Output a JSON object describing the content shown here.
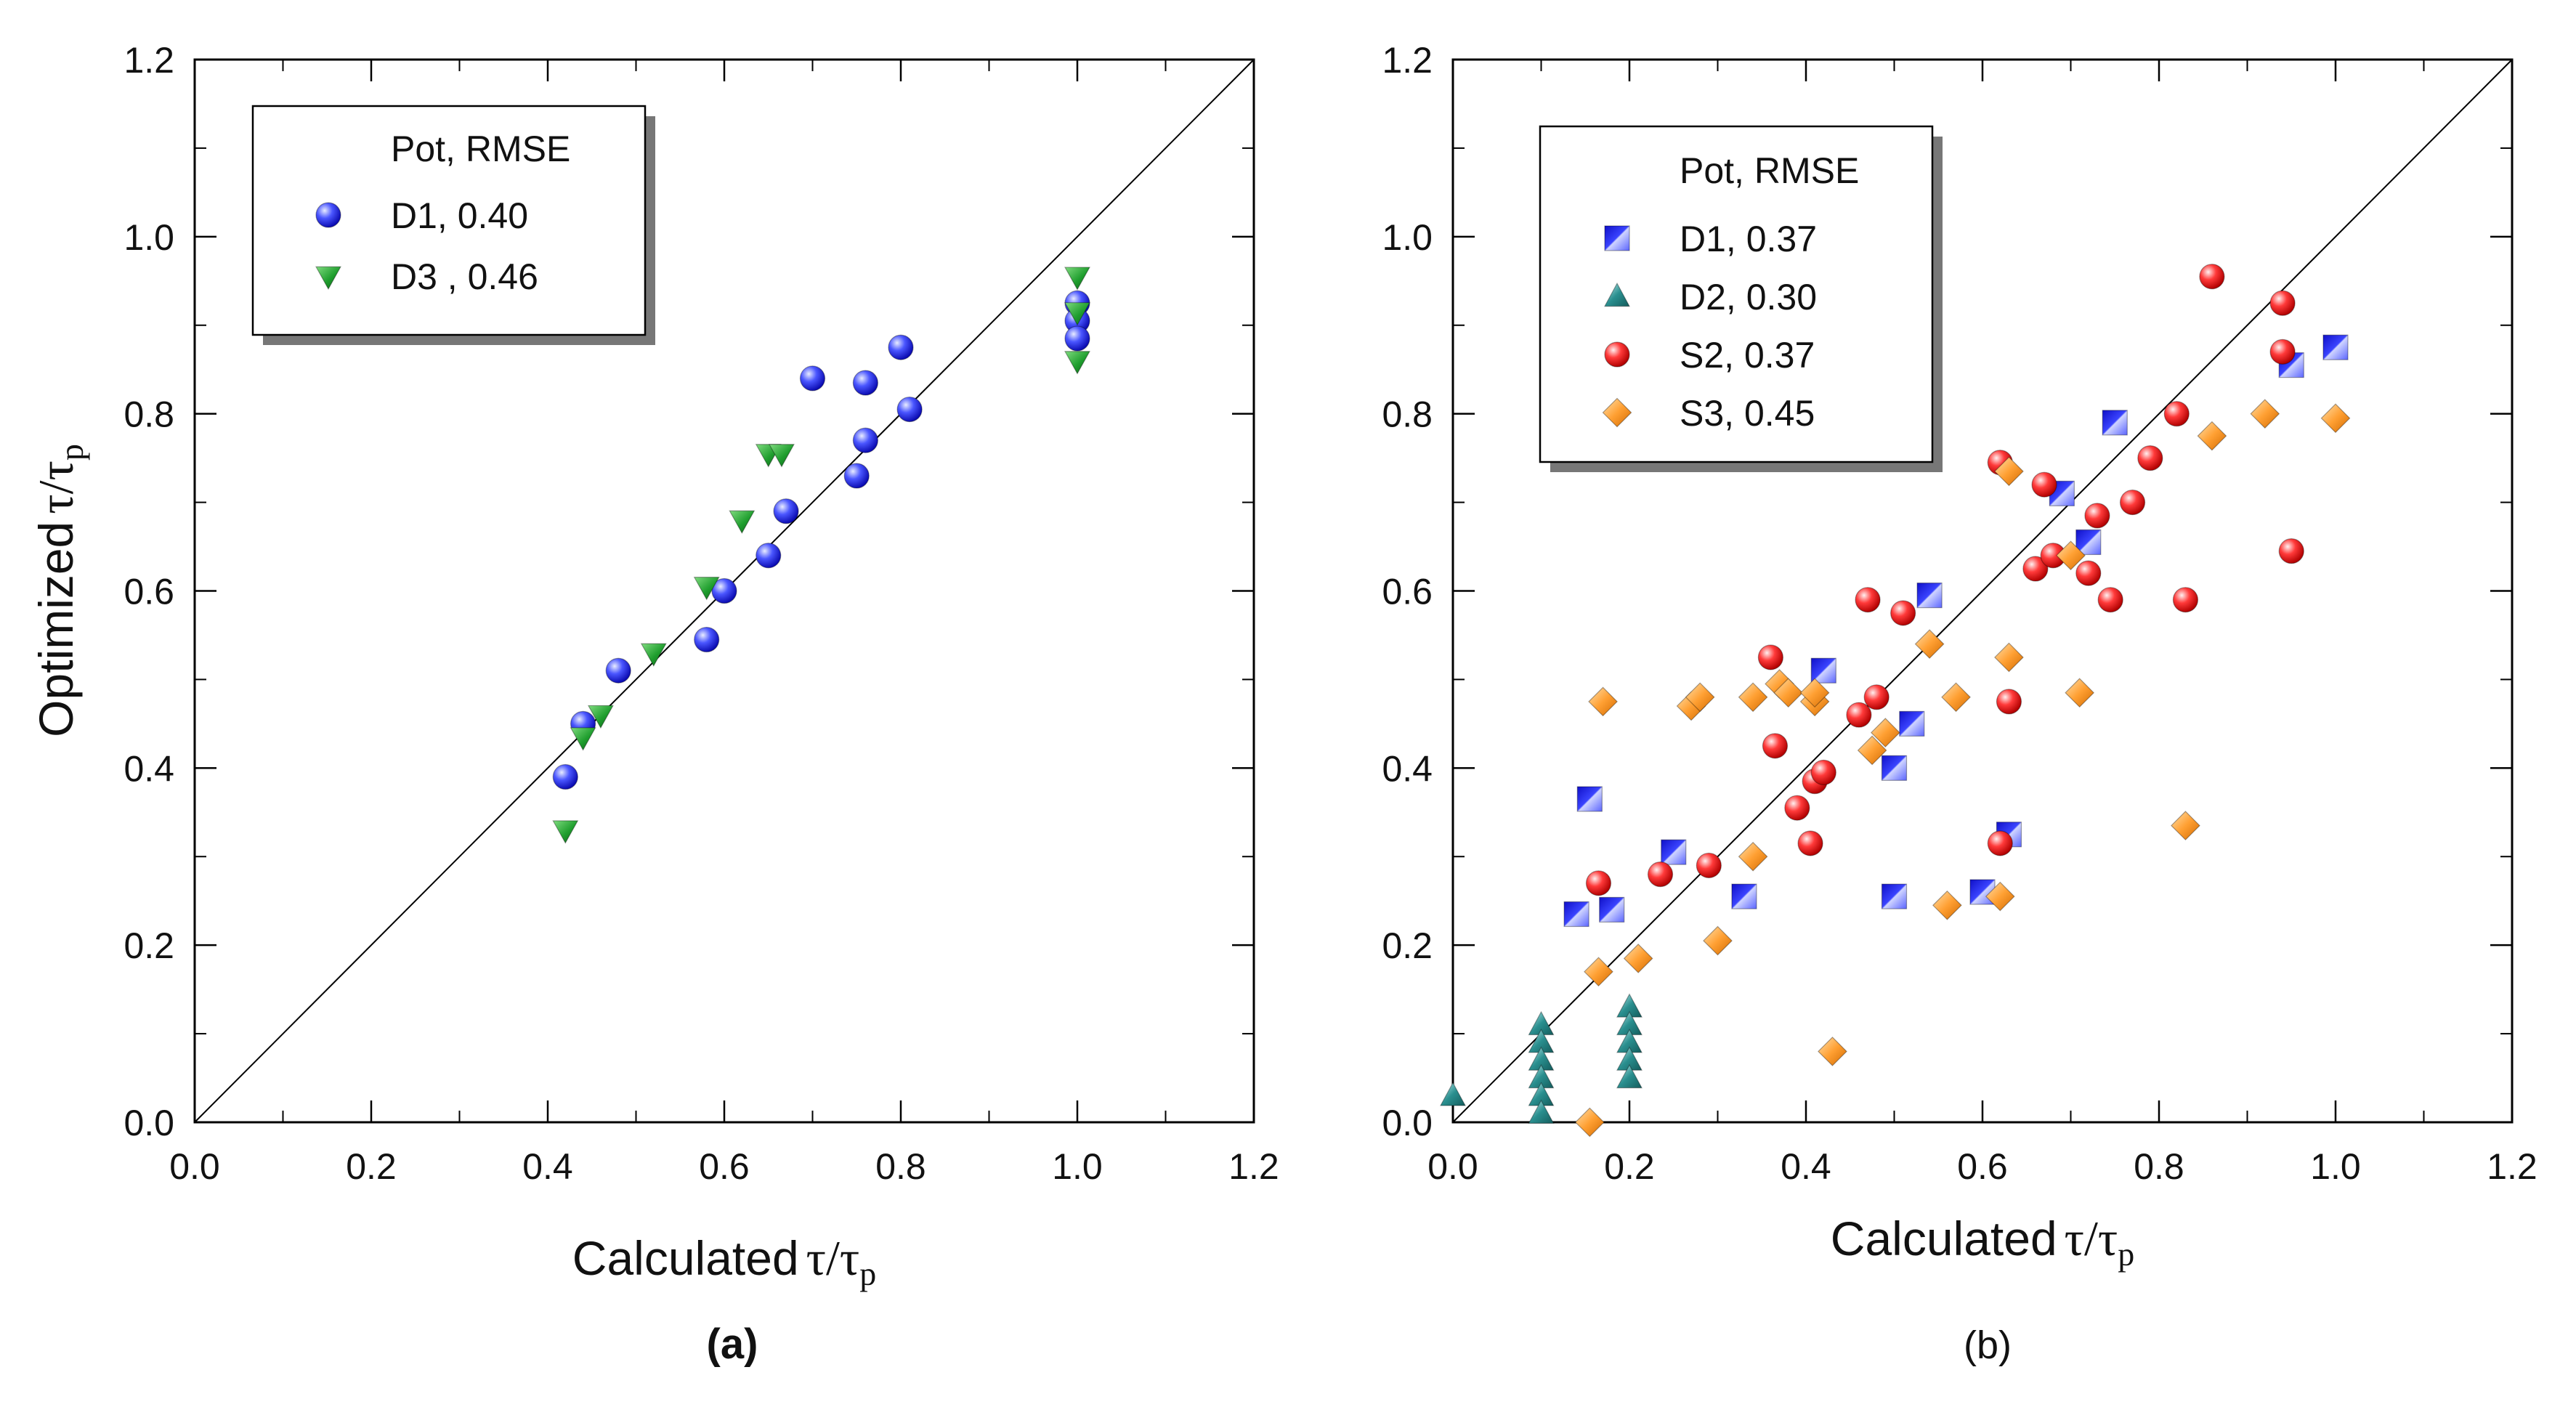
{
  "figure": {
    "panel_a_caption": "(a)",
    "panel_b_caption": "(b)"
  },
  "chart_data": [
    {
      "type": "scatter",
      "panel": "a",
      "caption": "(a)",
      "xlabel": "Calculated τ/τp",
      "xlabel_main": "Calculated",
      "xlabel_tau": "τ/τ",
      "xlabel_sub": "p",
      "ylabel": "Optimized τ/τp",
      "ylabel_main": "Optimized",
      "ylabel_tau": "τ/τ",
      "ylabel_sub": "p",
      "xlim": [
        0,
        1.2
      ],
      "ylim": [
        0,
        1.2
      ],
      "xticks": [
        "0.0",
        "0.2",
        "0.4",
        "0.6",
        "0.8",
        "1.0",
        "1.2"
      ],
      "yticks": [
        "0.0",
        "0.2",
        "0.4",
        "0.6",
        "0.8",
        "1.0",
        "1.2"
      ],
      "diagonal": true,
      "grid": false,
      "legend_position": "top-left",
      "legend_title": "Pot, RMSE",
      "series": [
        {
          "name": "D1, 0.40",
          "marker": "sphere",
          "color": "#2b2bff",
          "points": [
            [
              0.42,
              0.39
            ],
            [
              0.44,
              0.45
            ],
            [
              0.48,
              0.51
            ],
            [
              0.58,
              0.545
            ],
            [
              0.6,
              0.6
            ],
            [
              0.65,
              0.64
            ],
            [
              0.67,
              0.69
            ],
            [
              0.7,
              0.84
            ],
            [
              0.75,
              0.73
            ],
            [
              0.76,
              0.77
            ],
            [
              0.76,
              0.835
            ],
            [
              0.8,
              0.875
            ],
            [
              0.81,
              0.805
            ],
            [
              1.0,
              0.925
            ],
            [
              1.0,
              0.905
            ],
            [
              1.0,
              0.885
            ]
          ]
        },
        {
          "name": "D3 , 0.46",
          "marker": "triangle-down",
          "color": "#1f9e2e",
          "points": [
            [
              0.42,
              0.33
            ],
            [
              0.44,
              0.435
            ],
            [
              0.46,
              0.46
            ],
            [
              0.52,
              0.53
            ],
            [
              0.58,
              0.605
            ],
            [
              0.62,
              0.68
            ],
            [
              0.65,
              0.755
            ],
            [
              0.665,
              0.755
            ],
            [
              1.0,
              0.955
            ],
            [
              1.0,
              0.915
            ],
            [
              1.0,
              0.86
            ]
          ]
        }
      ]
    },
    {
      "type": "scatter",
      "panel": "b",
      "caption": "(b)",
      "xlabel": "Calculated τ/τp",
      "xlabel_main": "Calculated",
      "xlabel_tau": "τ/τ",
      "xlabel_sub": "p",
      "ylabel": "",
      "xlim": [
        0,
        1.2
      ],
      "ylim": [
        0,
        1.2
      ],
      "xticks": [
        "0.0",
        "0.2",
        "0.4",
        "0.6",
        "0.8",
        "1.0",
        "1.2"
      ],
      "yticks": [
        "0.0",
        "0.2",
        "0.4",
        "0.6",
        "0.8",
        "1.0",
        "1.2"
      ],
      "diagonal": true,
      "grid": false,
      "legend_position": "top-left",
      "legend_title": "Pot, RMSE",
      "series": [
        {
          "name": "D1, 0.37",
          "marker": "square",
          "color": "#2b2bff",
          "points": [
            [
              0.14,
              0.235
            ],
            [
              0.155,
              0.365
            ],
            [
              0.18,
              0.24
            ],
            [
              0.25,
              0.305
            ],
            [
              0.33,
              0.255
            ],
            [
              0.42,
              0.51
            ],
            [
              0.5,
              0.4
            ],
            [
              0.5,
              0.255
            ],
            [
              0.52,
              0.45
            ],
            [
              0.54,
              0.595
            ],
            [
              0.6,
              0.26
            ],
            [
              0.63,
              0.325
            ],
            [
              0.69,
              0.71
            ],
            [
              0.72,
              0.655
            ],
            [
              0.75,
              0.79
            ],
            [
              0.95,
              0.855
            ],
            [
              1.0,
              0.875
            ]
          ]
        },
        {
          "name": "D2, 0.30",
          "marker": "triangle-up",
          "color": "#2a8f8f",
          "points": [
            [
              0.0,
              0.03
            ],
            [
              0.1,
              0.11
            ],
            [
              0.1,
              0.09
            ],
            [
              0.1,
              0.07
            ],
            [
              0.1,
              0.05
            ],
            [
              0.1,
              0.03
            ],
            [
              0.1,
              0.01
            ],
            [
              0.2,
              0.13
            ],
            [
              0.2,
              0.11
            ],
            [
              0.2,
              0.09
            ],
            [
              0.2,
              0.07
            ],
            [
              0.2,
              0.05
            ]
          ]
        },
        {
          "name": "S2, 0.37",
          "marker": "sphere",
          "color": "#ee1c1c",
          "points": [
            [
              0.165,
              0.27
            ],
            [
              0.235,
              0.28
            ],
            [
              0.29,
              0.29
            ],
            [
              0.36,
              0.525
            ],
            [
              0.365,
              0.425
            ],
            [
              0.39,
              0.355
            ],
            [
              0.405,
              0.315
            ],
            [
              0.41,
              0.385
            ],
            [
              0.42,
              0.395
            ],
            [
              0.46,
              0.46
            ],
            [
              0.47,
              0.59
            ],
            [
              0.48,
              0.48
            ],
            [
              0.51,
              0.575
            ],
            [
              0.62,
              0.745
            ],
            [
              0.62,
              0.315
            ],
            [
              0.63,
              0.475
            ],
            [
              0.66,
              0.625
            ],
            [
              0.67,
              0.72
            ],
            [
              0.68,
              0.64
            ],
            [
              0.72,
              0.62
            ],
            [
              0.73,
              0.685
            ],
            [
              0.745,
              0.59
            ],
            [
              0.77,
              0.7
            ],
            [
              0.79,
              0.75
            ],
            [
              0.82,
              0.8
            ],
            [
              0.83,
              0.59
            ],
            [
              0.86,
              0.955
            ],
            [
              0.94,
              0.87
            ],
            [
              0.94,
              0.925
            ],
            [
              0.95,
              0.645
            ]
          ]
        },
        {
          "name": "S3, 0.45",
          "marker": "diamond",
          "color": "#ffa033",
          "points": [
            [
              0.155,
              0.0
            ],
            [
              0.165,
              0.17
            ],
            [
              0.17,
              0.475
            ],
            [
              0.21,
              0.185
            ],
            [
              0.27,
              0.47
            ],
            [
              0.28,
              0.48
            ],
            [
              0.3,
              0.205
            ],
            [
              0.34,
              0.3
            ],
            [
              0.34,
              0.48
            ],
            [
              0.37,
              0.495
            ],
            [
              0.38,
              0.485
            ],
            [
              0.41,
              0.475
            ],
            [
              0.41,
              0.485
            ],
            [
              0.43,
              0.08
            ],
            [
              0.475,
              0.42
            ],
            [
              0.49,
              0.44
            ],
            [
              0.54,
              0.54
            ],
            [
              0.56,
              0.245
            ],
            [
              0.57,
              0.48
            ],
            [
              0.62,
              0.255
            ],
            [
              0.63,
              0.525
            ],
            [
              0.7,
              0.64
            ],
            [
              0.71,
              0.485
            ],
            [
              0.83,
              0.335
            ],
            [
              0.86,
              0.775
            ],
            [
              0.92,
              0.8
            ],
            [
              1.0,
              0.795
            ],
            [
              0.63,
              0.735
            ]
          ]
        }
      ]
    }
  ]
}
